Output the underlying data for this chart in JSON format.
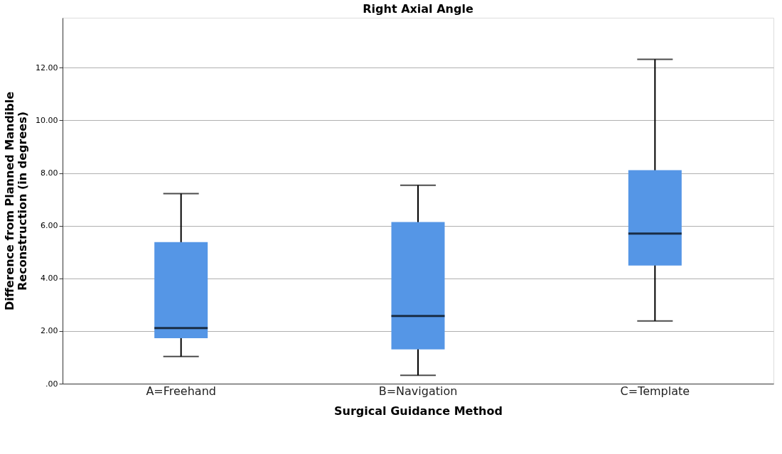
{
  "chart_data": {
    "type": "box",
    "title": "Right Axial Angle",
    "xlabel": "Surgical Guidance Method",
    "ylabel": "Difference from Planned Mandible\nReconstruction (in degrees)",
    "categories": [
      "A=Freehand",
      "B=Navigation",
      "C=Template"
    ],
    "series": [
      {
        "color": "#5596e6",
        "boxes": [
          {
            "low": 1.03,
            "q1": 1.73,
            "median": 2.11,
            "q3": 5.38,
            "high": 7.22
          },
          {
            "low": 0.32,
            "q1": 1.3,
            "median": 2.57,
            "q3": 6.14,
            "high": 7.54
          },
          {
            "low": 2.38,
            "q1": 4.49,
            "median": 5.7,
            "q3": 8.11,
            "high": 12.32
          }
        ]
      }
    ],
    "ylim": [
      0,
      13.9
    ],
    "yticks": [
      {
        "value": 0,
        "label": ".00"
      },
      {
        "value": 2,
        "label": "2.00"
      },
      {
        "value": 4,
        "label": "4.00"
      },
      {
        "value": 6,
        "label": "6.00"
      },
      {
        "value": 8,
        "label": "8.00"
      },
      {
        "value": 10,
        "label": "10.00"
      },
      {
        "value": 12,
        "label": "12.00"
      }
    ],
    "grid": "y"
  }
}
